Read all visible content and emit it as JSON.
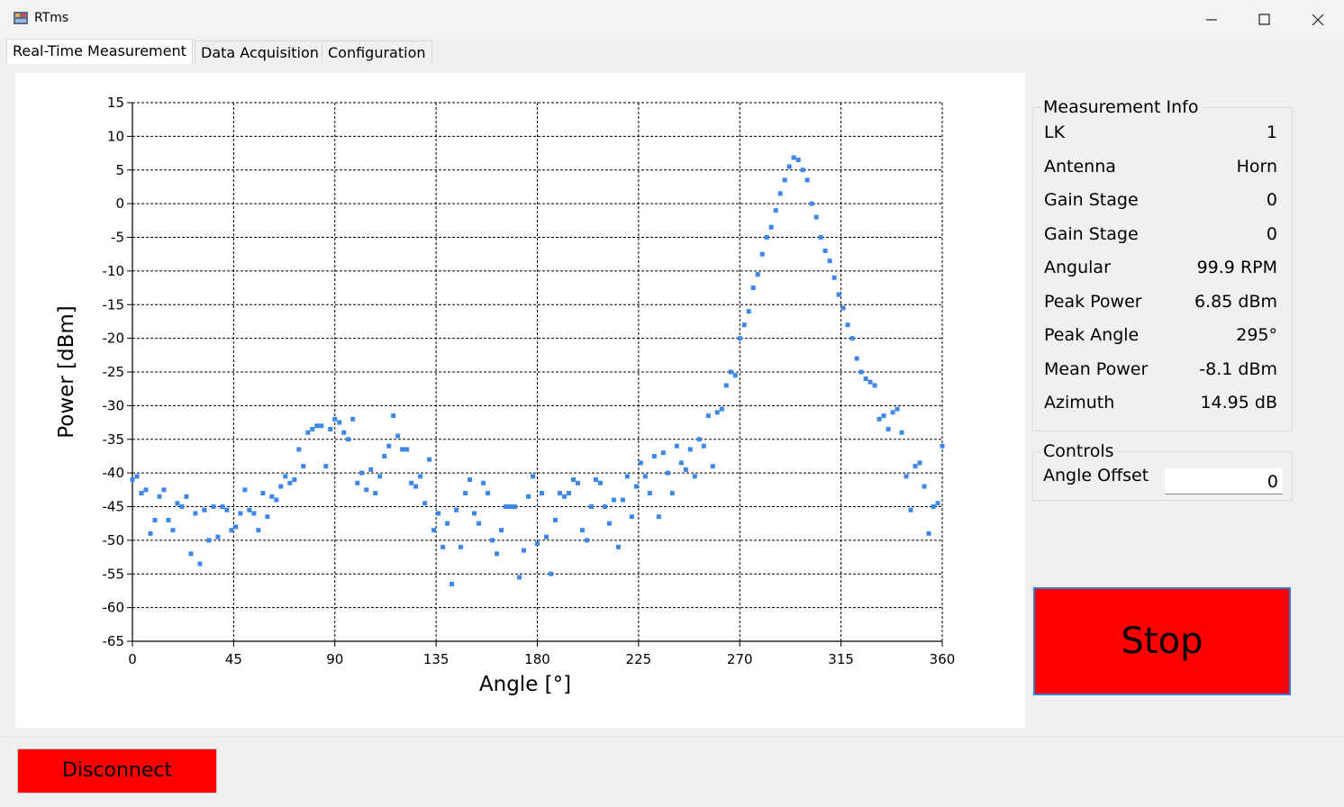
{
  "window": {
    "title": "RTms"
  },
  "tabs": [
    "Real-Time Measurement",
    "Data Acquisition",
    "Configuration"
  ],
  "chart_data": {
    "type": "scatter",
    "x_label": "Angle [°]",
    "y_label": "Power [dBm]",
    "x": [
      0,
      2,
      4,
      6,
      8,
      10,
      12,
      14,
      16,
      18,
      20,
      22,
      24,
      26,
      28,
      30,
      32,
      34,
      36,
      38,
      40,
      42,
      44,
      46,
      48,
      50,
      52,
      54,
      56,
      58,
      60,
      62,
      64,
      66,
      68,
      70,
      72,
      74,
      76,
      78,
      80,
      82,
      84,
      86,
      88,
      90,
      92,
      94,
      96,
      98,
      100,
      102,
      104,
      106,
      108,
      110,
      112,
      114,
      116,
      118,
      120,
      122,
      124,
      126,
      128,
      130,
      132,
      134,
      136,
      138,
      140,
      142,
      144,
      146,
      148,
      150,
      152,
      154,
      156,
      158,
      160,
      162,
      164,
      166,
      168,
      170,
      172,
      174,
      176,
      178,
      180,
      182,
      184,
      186,
      188,
      190,
      192,
      194,
      196,
      198,
      200,
      202,
      204,
      206,
      208,
      210,
      212,
      214,
      216,
      218,
      220,
      222,
      224,
      226,
      228,
      230,
      232,
      234,
      236,
      238,
      240,
      242,
      244,
      246,
      248,
      250,
      252,
      254,
      256,
      258,
      260,
      262,
      264,
      266,
      268,
      270,
      272,
      274,
      276,
      278,
      280,
      282,
      284,
      286,
      288,
      290,
      292,
      294,
      296,
      298,
      300,
      302,
      304,
      306,
      308,
      310,
      312,
      314,
      316,
      318,
      320,
      322,
      324,
      326,
      328,
      330,
      332,
      334,
      336,
      338,
      340,
      342,
      344,
      346,
      348,
      350,
      352,
      354,
      356,
      358,
      360
    ],
    "values": [
      -41,
      -40.5,
      -43,
      -42.5,
      -49,
      -47,
      -43.5,
      -42.5,
      -47,
      -48.5,
      -44.5,
      -45,
      -43.5,
      -52,
      -46,
      -53.5,
      -45.5,
      -50,
      -45,
      -49.5,
      -45,
      -45.5,
      -48.5,
      -48,
      -46,
      -42.5,
      -45.5,
      -46,
      -48.5,
      -43,
      -46.5,
      -43.5,
      -44,
      -42,
      -40.5,
      -41.5,
      -41,
      -36.5,
      -39,
      -34,
      -33.5,
      -33,
      -33,
      -39,
      -33.5,
      -32,
      -32.5,
      -34,
      -35,
      -32,
      -41.5,
      -40,
      -42.5,
      -39.5,
      -43,
      -40.5,
      -37.5,
      -36,
      -31.5,
      -34.5,
      -36.5,
      -36.5,
      -41.5,
      -42,
      -40.5,
      -44.5,
      -38,
      -48.5,
      -46,
      -51,
      -47.5,
      -56.5,
      -45.5,
      -51,
      -43,
      -41,
      -46,
      -47.5,
      -41.5,
      -43,
      -50,
      -52,
      -48.5,
      -45,
      -45,
      -45,
      -55.5,
      -51.5,
      -43.5,
      -40.5,
      -50.5,
      -43,
      -49.5,
      -55,
      -47,
      -43,
      -43.5,
      -43,
      -41,
      -41.5,
      -48.5,
      -50,
      -45,
      -41,
      -41.5,
      -45,
      -47.5,
      -44,
      -51,
      -44,
      -40.5,
      -46.5,
      -42,
      -38.5,
      -40.5,
      -43,
      -37.5,
      -46.5,
      -37,
      -40,
      -43,
      -36,
      -38.5,
      -39.5,
      -36.5,
      -40.5,
      -35,
      -36,
      -31.5,
      -39,
      -31,
      -30.5,
      -27,
      -25,
      -25.5,
      -20,
      -18,
      -16,
      -12.5,
      -10.5,
      -7.5,
      -5,
      -3.5,
      -1,
      1.5,
      3.5,
      5.5,
      6.85,
      6.5,
      5,
      3.5,
      0,
      -2,
      -5,
      -7,
      -8.5,
      -11,
      -13.5,
      -15.5,
      -18,
      -20,
      -23,
      -25,
      -26,
      -26.5,
      -27,
      -32,
      -31.5,
      -33.5,
      -31,
      -30.5,
      -34,
      -40.5,
      -45.5,
      -39,
      -38.5,
      -42,
      -49,
      -45,
      -44.5,
      -36
    ],
    "color": "#3d87e8",
    "xlim": [
      0,
      360
    ],
    "xticks": [
      0,
      45,
      90,
      135,
      180,
      225,
      270,
      315,
      360
    ],
    "ylim": [
      -65,
      15
    ],
    "yticks": [
      -65,
      -60,
      -55,
      -50,
      -45,
      -40,
      -35,
      -30,
      -25,
      -20,
      -15,
      -10,
      -5,
      0,
      5,
      10,
      15
    ],
    "grid": true
  },
  "measurement_info": {
    "title": "Measurement Info",
    "rows": [
      [
        "LK",
        "1"
      ],
      [
        "Antenna",
        "Horn"
      ],
      [
        "Gain Stage",
        "0"
      ],
      [
        "Gain Stage",
        "0"
      ],
      [
        "Angular",
        "99.9 RPM"
      ],
      [
        "Peak Power",
        "6.85 dBm"
      ],
      [
        "Peak Angle",
        "295°"
      ],
      [
        "Mean Power",
        "-8.1 dBm"
      ],
      [
        "Azimuth",
        "14.95 dB"
      ]
    ]
  },
  "controls": {
    "title": "Controls",
    "angle_offset_label": "Angle Offset",
    "angle_offset_value": "0"
  },
  "stop_button": "Stop",
  "disconnect_button": "Disconnect"
}
